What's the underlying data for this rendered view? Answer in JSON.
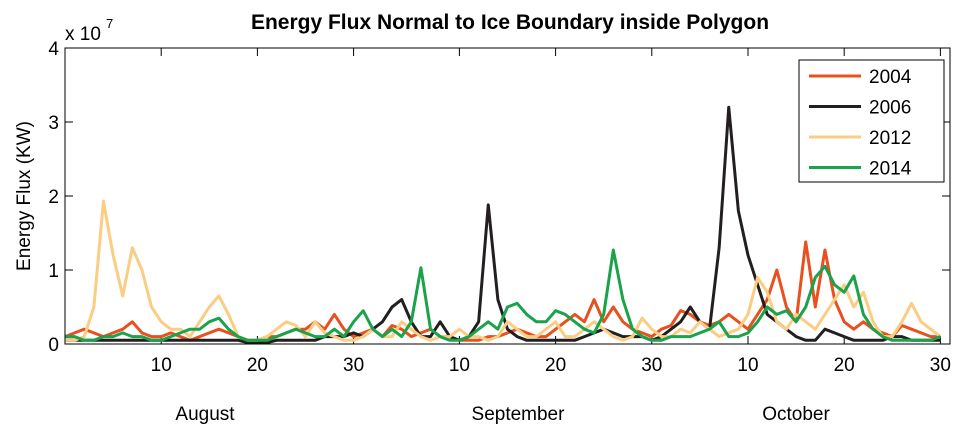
{
  "chart_data": {
    "type": "line",
    "title": "Energy Flux Normal to Ice Boundary inside Polygon",
    "y_label": "Energy Flux (KW)",
    "y_scale_label": {
      "base": "x 10",
      "exponent": "7"
    },
    "months": [
      "August",
      "September",
      "October"
    ],
    "x": [
      0,
      1,
      2,
      3,
      4,
      5,
      6,
      7,
      8,
      9,
      10,
      11,
      12,
      13,
      14,
      15,
      16,
      17,
      18,
      19,
      20,
      21,
      22,
      23,
      24,
      25,
      26,
      27,
      28,
      29,
      30,
      31,
      32,
      33,
      34,
      35,
      36,
      37,
      38,
      39,
      40,
      41,
      42,
      43,
      44,
      45,
      46,
      47,
      48,
      49,
      50,
      51,
      52,
      53,
      54,
      55,
      56,
      57,
      58,
      59,
      60,
      61,
      62,
      63,
      64,
      65,
      66,
      67,
      68,
      69,
      70,
      71,
      72,
      73,
      74,
      75,
      76,
      77,
      78,
      79,
      80,
      81,
      82,
      83,
      84,
      85,
      86,
      87,
      88,
      89,
      90,
      91
    ],
    "xlim": [
      0,
      92
    ],
    "xticks": [
      10,
      20,
      30,
      {
        "value": 41,
        "label": "10"
      },
      {
        "value": 51,
        "label": "20"
      },
      {
        "value": 61,
        "label": "30"
      },
      {
        "value": 71,
        "label": "10"
      },
      {
        "value": 81,
        "label": "20"
      },
      {
        "value": 91,
        "label": "30"
      }
    ],
    "ylim": [
      0,
      4
    ],
    "yticks": [
      0,
      1,
      2,
      3,
      4
    ],
    "grid": false,
    "legend": "northeast",
    "series": [
      {
        "name": "2004",
        "color": "#e8501e",
        "values": [
          0.1,
          0.15,
          0.2,
          0.15,
          0.1,
          0.15,
          0.2,
          0.3,
          0.15,
          0.1,
          0.1,
          0.15,
          0.1,
          0.05,
          0.1,
          0.15,
          0.2,
          0.15,
          0.1,
          0.05,
          0.05,
          0.1,
          0.1,
          0.15,
          0.2,
          0.2,
          0.3,
          0.2,
          0.4,
          0.2,
          0.1,
          0.15,
          0.2,
          0.1,
          0.25,
          0.2,
          0.1,
          0.15,
          0.2,
          0.1,
          0.1,
          0.05,
          0.05,
          0.05,
          0.1,
          0.1,
          0.15,
          0.2,
          0.15,
          0.1,
          0.1,
          0.2,
          0.3,
          0.4,
          0.3,
          0.6,
          0.3,
          0.5,
          0.3,
          0.2,
          0.15,
          0.1,
          0.2,
          0.25,
          0.45,
          0.4,
          0.3,
          0.25,
          0.3,
          0.4,
          0.3,
          0.2,
          0.4,
          0.6,
          1.0,
          0.5,
          0.3,
          1.38,
          0.5,
          1.27,
          0.6,
          0.3,
          0.2,
          0.3,
          0.2,
          0.15,
          0.1,
          0.25,
          0.2,
          0.15,
          0.1,
          0.1
        ]
      },
      {
        "name": "2006",
        "color": "#231f20",
        "values": [
          0.05,
          0.05,
          0.05,
          0.05,
          0.05,
          0.05,
          0.05,
          0.05,
          0.05,
          0.05,
          0.05,
          0.05,
          0.05,
          0.05,
          0.05,
          0.05,
          0.05,
          0.05,
          0.05,
          0.02,
          0.02,
          0.02,
          0.05,
          0.05,
          0.05,
          0.05,
          0.05,
          0.1,
          0.1,
          0.1,
          0.15,
          0.1,
          0.2,
          0.3,
          0.5,
          0.6,
          0.3,
          0.1,
          0.1,
          0.3,
          0.1,
          0.05,
          0.1,
          0.3,
          1.88,
          0.6,
          0.2,
          0.1,
          0.05,
          0.05,
          0.05,
          0.05,
          0.05,
          0.05,
          0.1,
          0.15,
          0.2,
          0.15,
          0.1,
          0.1,
          0.1,
          0.05,
          0.1,
          0.2,
          0.3,
          0.5,
          0.3,
          0.2,
          1.3,
          3.2,
          1.8,
          1.2,
          0.8,
          0.4,
          0.3,
          0.2,
          0.1,
          0.05,
          0.05,
          0.2,
          0.15,
          0.1,
          0.05,
          0.05,
          0.05,
          0.05,
          0.1,
          0.1,
          0.05,
          0.05,
          0.05,
          0.05
        ]
      },
      {
        "name": "2012",
        "color": "#fbcd83",
        "values": [
          0.05,
          0.05,
          0.1,
          0.5,
          1.93,
          1.2,
          0.65,
          1.3,
          1.0,
          0.5,
          0.3,
          0.2,
          0.2,
          0.1,
          0.3,
          0.5,
          0.65,
          0.4,
          0.1,
          0.05,
          0.05,
          0.1,
          0.2,
          0.3,
          0.25,
          0.1,
          0.3,
          0.15,
          0.1,
          0.05,
          0.05,
          0.1,
          0.2,
          0.1,
          0.1,
          0.3,
          0.2,
          0.1,
          0.05,
          0.1,
          0.1,
          0.2,
          0.1,
          0.1,
          0.05,
          0.1,
          0.3,
          0.2,
          0.1,
          0.1,
          0.2,
          0.3,
          0.1,
          0.1,
          0.2,
          0.3,
          0.2,
          0.1,
          0.05,
          0.1,
          0.35,
          0.2,
          0.1,
          0.1,
          0.2,
          0.15,
          0.3,
          0.2,
          0.1,
          0.15,
          0.2,
          0.4,
          0.9,
          0.7,
          0.3,
          0.2,
          0.4,
          0.3,
          0.2,
          0.4,
          0.6,
          0.8,
          0.5,
          0.7,
          0.3,
          0.1,
          0.1,
          0.3,
          0.55,
          0.3,
          0.2,
          0.1
        ]
      },
      {
        "name": "2014",
        "color": "#1aa34a",
        "values": [
          0.1,
          0.1,
          0.05,
          0.05,
          0.1,
          0.1,
          0.15,
          0.1,
          0.1,
          0.05,
          0.05,
          0.1,
          0.15,
          0.2,
          0.2,
          0.3,
          0.35,
          0.2,
          0.1,
          0.05,
          0.05,
          0.05,
          0.1,
          0.15,
          0.2,
          0.15,
          0.1,
          0.1,
          0.2,
          0.1,
          0.3,
          0.45,
          0.2,
          0.1,
          0.2,
          0.1,
          0.3,
          1.03,
          0.2,
          0.1,
          0.05,
          0.05,
          0.1,
          0.2,
          0.3,
          0.2,
          0.5,
          0.55,
          0.4,
          0.3,
          0.3,
          0.45,
          0.4,
          0.3,
          0.2,
          0.15,
          0.4,
          1.27,
          0.6,
          0.2,
          0.1,
          0.05,
          0.05,
          0.1,
          0.1,
          0.1,
          0.15,
          0.2,
          0.3,
          0.1,
          0.1,
          0.15,
          0.3,
          0.5,
          0.4,
          0.45,
          0.3,
          0.5,
          0.9,
          1.05,
          0.8,
          0.7,
          0.92,
          0.4,
          0.2,
          0.1,
          0.05,
          0.05,
          0.05,
          0.05,
          0.05,
          0.1
        ]
      }
    ]
  }
}
